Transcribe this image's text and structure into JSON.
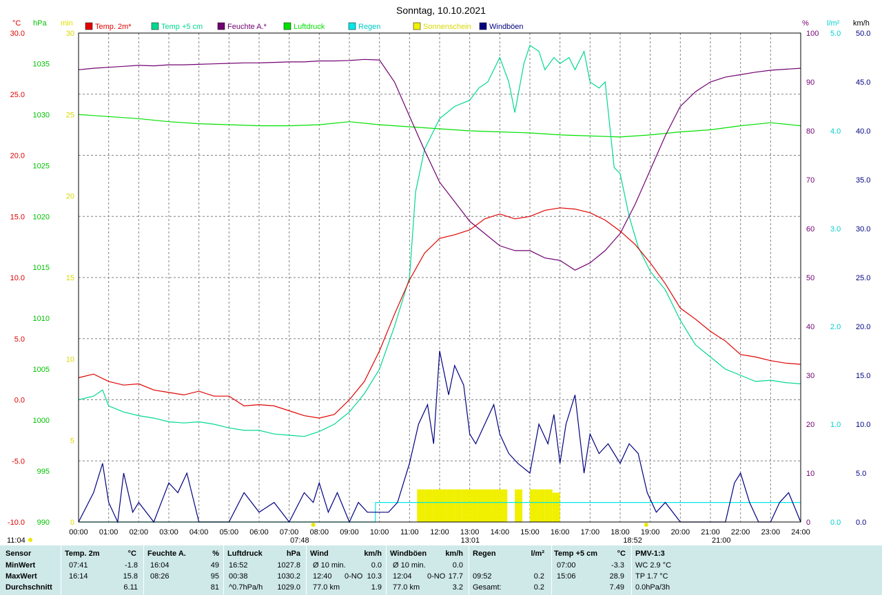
{
  "title": "Sonntag, 10.10.2021",
  "colors": {
    "temp2m": "#e00000",
    "temp5cm": "#00d890",
    "humidity": "#700070",
    "pressure": "#00e000",
    "rain": "#00e8e8",
    "sunshine": "#f0f000",
    "gusts": "#000080",
    "grid": "#808080"
  },
  "axes": {
    "temp": {
      "unit": "°C",
      "min": -10,
      "max": 30,
      "ticks": [
        "30.0",
        "25.0",
        "20.0",
        "15.0",
        "10.0",
        "5.0",
        "0.0",
        "-5.0",
        "-10.0"
      ]
    },
    "pressure": {
      "unit": "hPa",
      "min": 990,
      "max": 1038,
      "ticks": [
        "1035",
        "1030",
        "1025",
        "1020",
        "1015",
        "1010",
        "1005",
        "1000",
        "995",
        "990"
      ]
    },
    "sunshine": {
      "unit": "min",
      "min": 0,
      "max": 30,
      "ticks": [
        "30",
        "25",
        "20",
        "15",
        "10",
        "5",
        "0"
      ]
    },
    "humidity": {
      "unit": "%",
      "min": 0,
      "max": 100,
      "ticks": [
        "100",
        "90",
        "80",
        "70",
        "60",
        "50",
        "40",
        "30",
        "20",
        "10",
        "0"
      ]
    },
    "rain": {
      "unit": "l/m²",
      "min": 0,
      "max": 5,
      "ticks": [
        "5.0",
        "4.0",
        "3.0",
        "2.0",
        "1.0",
        "0.0"
      ]
    },
    "wind": {
      "unit": "km/h",
      "min": 0,
      "max": 50,
      "ticks": [
        "50.0",
        "45.0",
        "40.0",
        "35.0",
        "30.0",
        "25.0",
        "20.0",
        "15.0",
        "10.0",
        "5.0",
        "0.0"
      ]
    },
    "x": {
      "ticks": [
        "00:00",
        "01:00",
        "02:00",
        "03:00",
        "04:00",
        "05:00",
        "06:00",
        "07:00",
        "08:00",
        "09:00",
        "10:00",
        "11:00",
        "12:00",
        "13:00",
        "14:00",
        "15:00",
        "16:00",
        "17:00",
        "18:00",
        "19:00",
        "20:00",
        "21:00",
        "22:00",
        "23:00",
        "24:00"
      ]
    }
  },
  "legend": [
    {
      "label": "Temp. 2m*",
      "color": "#e00000"
    },
    {
      "label": "Temp +5 cm",
      "color": "#00d890"
    },
    {
      "label": "Feuchte A.*",
      "color": "#700070"
    },
    {
      "label": "Luftdruck",
      "color": "#00e000"
    },
    {
      "label": "Regen",
      "color": "#00e8e8"
    },
    {
      "label": "Sonnenschein",
      "color": "#f0f000"
    },
    {
      "label": "Windböen",
      "color": "#000080"
    }
  ],
  "markers": {
    "sunrise": "07:48",
    "sunset": "18:52",
    "moonrise": "11:04",
    "moonset": "21:00",
    "noon": "13:01"
  },
  "chart_data": {
    "type": "line",
    "xlim": [
      0,
      24
    ],
    "series": [
      {
        "name": "Temp. 2m*",
        "axis": "temp",
        "x": [
          0,
          0.5,
          1,
          1.5,
          2,
          2.5,
          3,
          3.5,
          4,
          4.5,
          5,
          5.5,
          6,
          6.5,
          7,
          7.5,
          8,
          8.5,
          9,
          9.5,
          10,
          10.5,
          11,
          11.5,
          12,
          12.5,
          13,
          13.5,
          14,
          14.5,
          15,
          15.5,
          16,
          16.5,
          17,
          17.5,
          18,
          18.5,
          19,
          19.5,
          20,
          20.5,
          21,
          21.5,
          22,
          22.5,
          23,
          23.5,
          24
        ],
        "y": [
          1.8,
          2.1,
          1.5,
          1.2,
          1.3,
          0.8,
          0.6,
          0.4,
          0.7,
          0.3,
          0.3,
          -0.5,
          -0.4,
          -0.5,
          -0.9,
          -1.3,
          -1.5,
          -1.2,
          0.0,
          1.5,
          4.0,
          7.0,
          9.8,
          12.0,
          13.2,
          13.5,
          13.9,
          14.8,
          15.2,
          14.8,
          15.0,
          15.5,
          15.7,
          15.6,
          15.3,
          14.7,
          13.8,
          12.7,
          11.2,
          9.5,
          7.5,
          6.6,
          5.6,
          4.8,
          3.7,
          3.5,
          3.2,
          3.0,
          2.9
        ]
      },
      {
        "name": "Temp +5 cm",
        "axis": "temp",
        "x": [
          0,
          0.5,
          0.8,
          1,
          1.5,
          2,
          2.5,
          3,
          3.5,
          4,
          4.5,
          5,
          5.5,
          6,
          6.5,
          7,
          7.5,
          8,
          8.5,
          9,
          9.5,
          10,
          10.5,
          11,
          11.2,
          11.5,
          12,
          12.5,
          13,
          13.3,
          13.6,
          14,
          14.3,
          14.5,
          14.8,
          15,
          15.3,
          15.5,
          15.8,
          16,
          16.3,
          16.5,
          16.8,
          17,
          17.3,
          17.5,
          17.8,
          18,
          18.3,
          18.6,
          19,
          19.5,
          20,
          20.5,
          21,
          21.5,
          22,
          22.5,
          23,
          23.5,
          24
        ],
        "y": [
          0,
          0.3,
          0.8,
          -0.5,
          -1.0,
          -1.3,
          -1.5,
          -1.8,
          -1.9,
          -1.8,
          -2.0,
          -2.3,
          -2.5,
          -2.5,
          -2.8,
          -2.9,
          -3.0,
          -2.6,
          -2.0,
          -1.0,
          0.5,
          2.5,
          6.0,
          10.0,
          17.0,
          20.5,
          23.0,
          24.0,
          24.5,
          25.5,
          26.0,
          28.0,
          26.0,
          23.5,
          27.5,
          29.0,
          28.5,
          27.0,
          28.0,
          27.5,
          28.0,
          27.0,
          28.5,
          26.0,
          25.5,
          26.0,
          19.0,
          18.5,
          15.0,
          12.5,
          10.5,
          9.0,
          6.5,
          4.5,
          3.5,
          2.5,
          2.0,
          1.5,
          1.6,
          1.4,
          1.3
        ]
      },
      {
        "name": "Feuchte A.*",
        "axis": "humidity",
        "x": [
          0,
          0.5,
          1,
          1.5,
          2,
          2.5,
          3,
          3.5,
          4,
          4.5,
          5,
          5.5,
          6,
          6.5,
          7,
          7.5,
          8,
          8.5,
          9,
          9.5,
          10,
          10.5,
          11,
          11.5,
          12,
          12.5,
          13,
          13.5,
          14,
          14.5,
          15,
          15.5,
          16,
          16.5,
          17,
          17.5,
          18,
          18.5,
          19,
          19.5,
          20,
          20.5,
          21,
          21.5,
          22,
          22.5,
          23,
          23.5,
          24
        ],
        "y": [
          92.5,
          92.8,
          93.0,
          93.2,
          93.4,
          93.3,
          93.5,
          93.5,
          93.6,
          93.7,
          93.8,
          93.9,
          93.9,
          94.0,
          94.1,
          94.1,
          94.3,
          94.3,
          94.4,
          94.6,
          94.5,
          90.0,
          83.0,
          76.0,
          69.5,
          65.5,
          61.5,
          59.0,
          56.5,
          55.5,
          55.5,
          54.0,
          53.5,
          51.5,
          53.0,
          55.5,
          59.0,
          65.0,
          72.0,
          79.0,
          85.0,
          88.0,
          90.0,
          91.0,
          91.5,
          92.0,
          92.4,
          92.6,
          92.8
        ]
      },
      {
        "name": "Luftdruck",
        "axis": "pressure",
        "x": [
          0,
          1,
          2,
          3,
          4,
          5,
          6,
          7,
          8,
          9,
          10,
          11,
          12,
          13,
          14,
          15,
          16,
          17,
          18,
          19,
          20,
          21,
          22,
          23,
          24
        ],
        "y": [
          1030.0,
          1029.8,
          1029.6,
          1029.3,
          1029.1,
          1029.0,
          1028.9,
          1028.9,
          1029.0,
          1029.3,
          1029.0,
          1028.8,
          1028.6,
          1028.4,
          1028.3,
          1028.2,
          1028.0,
          1027.9,
          1027.8,
          1028.0,
          1028.3,
          1028.5,
          1028.9,
          1029.2,
          1028.9
        ]
      },
      {
        "name": "Regen",
        "axis": "rain",
        "x": [
          0,
          9.86,
          9.87,
          24
        ],
        "y": [
          0,
          0,
          0.2,
          0.2
        ]
      },
      {
        "name": "Sonnenschein",
        "axis": "sunshine",
        "kind": "bars",
        "x": [
          11.25,
          11.5,
          11.75,
          12,
          12.25,
          12.5,
          12.75,
          13,
          13.25,
          13.5,
          13.75,
          14,
          14.25,
          14.5,
          14.75,
          15,
          15.25,
          15.5,
          15.75
        ],
        "y": [
          2.0,
          2.0,
          2.0,
          2.0,
          2.0,
          2.0,
          2.0,
          2.0,
          2.0,
          2.0,
          2.0,
          2.0,
          0,
          2.0,
          0,
          2.0,
          2.0,
          2.0,
          1.8
        ]
      },
      {
        "name": "Windböen",
        "axis": "wind",
        "x": [
          0,
          0.5,
          0.8,
          1,
          1.3,
          1.5,
          1.8,
          2,
          2.5,
          3,
          3.3,
          3.6,
          4,
          4.5,
          5,
          5.5,
          6,
          6.5,
          7,
          7.5,
          7.8,
          8,
          8.3,
          8.6,
          9,
          9.3,
          9.6,
          10,
          10.3,
          10.6,
          11,
          11.3,
          11.6,
          11.8,
          12,
          12.3,
          12.5,
          12.8,
          13,
          13.2,
          13.5,
          13.8,
          14,
          14.3,
          14.6,
          15,
          15.3,
          15.6,
          15.8,
          16,
          16.2,
          16.5,
          16.8,
          17,
          17.3,
          17.6,
          18,
          18.3,
          18.6,
          18.9,
          19.2,
          19.5,
          20,
          20.5,
          21,
          21.5,
          21.8,
          22,
          22.3,
          22.6,
          23,
          23.3,
          23.6,
          24
        ],
        "y": [
          0,
          3,
          6,
          2,
          0,
          5,
          1,
          2,
          0,
          4,
          3,
          5,
          0,
          0,
          0,
          3,
          1,
          2,
          0,
          3,
          2,
          4,
          1,
          3,
          0,
          2,
          1,
          1,
          1,
          2,
          6,
          10,
          12,
          8,
          17.5,
          13,
          16,
          14,
          9,
          8,
          10,
          12,
          9,
          7,
          6,
          5,
          10,
          8,
          11,
          6,
          10,
          13,
          5,
          9,
          7,
          8,
          6,
          8,
          7,
          3,
          1,
          2,
          0,
          0,
          0,
          0,
          4,
          5,
          2,
          0,
          0,
          2,
          3,
          0
        ]
      }
    ]
  },
  "footer": {
    "headers": {
      "sensor": "Sensor",
      "temp2m": "Temp. 2m",
      "temp2m_unit": "°C",
      "hum": "Feuchte A.",
      "hum_unit": "%",
      "press": "Luftdruck",
      "press_unit": "hPa",
      "wind": "Wind",
      "wind_unit": "km/h",
      "gust": "Windböen",
      "gust_unit": "km/h",
      "rain": "Regen",
      "rain_unit": "l/m²",
      "t5": "Temp +5 cm",
      "t5_unit": "°C",
      "pmv": "PMV-1:3"
    },
    "rows": {
      "min": {
        "label": "MinWert",
        "temp_time": "07:41",
        "temp_val": "-1.8",
        "hum_time": "16:04",
        "hum_val": "49",
        "press_time": "16:52",
        "press_val": "1027.8",
        "wind_time": "Ø 10 min.",
        "wind_val": "0.0",
        "gust_time": "Ø 10 min.",
        "gust_val": "0.0",
        "rain_time": "",
        "rain_val": "",
        "t5_time": "07:00",
        "t5_val": "-3.3",
        "pmv": "WC 2.9 °C"
      },
      "max": {
        "label": "MaxWert",
        "temp_time": "16:14",
        "temp_val": "15.8",
        "hum_time": "08:26",
        "hum_val": "95",
        "press_time": "00:38",
        "press_val": "1030.2",
        "wind_time": "12:40",
        "wind_dir": "0-NO",
        "wind_val": "10.3",
        "gust_time": "12:04",
        "gust_dir": "0-NO",
        "gust_val": "17.7",
        "rain_time": "09:52",
        "rain_val": "0.2",
        "t5_time": "15:06",
        "t5_val": "28.9",
        "pmv": "TP 1.7 °C"
      },
      "avg": {
        "label": "Durchschnitt",
        "temp_val": "6.11",
        "hum_val": "81",
        "press_time": "^0.7hPa/h",
        "press_val": "1029.0",
        "wind_time": "77.0 km",
        "wind_val": "1.9",
        "gust_time": "77.0 km",
        "gust_val": "3.2",
        "rain_time": "Gesamt:",
        "rain_val": "0.2",
        "t5_val": "7.49",
        "pmv": "0.0hPa/3h"
      }
    }
  }
}
